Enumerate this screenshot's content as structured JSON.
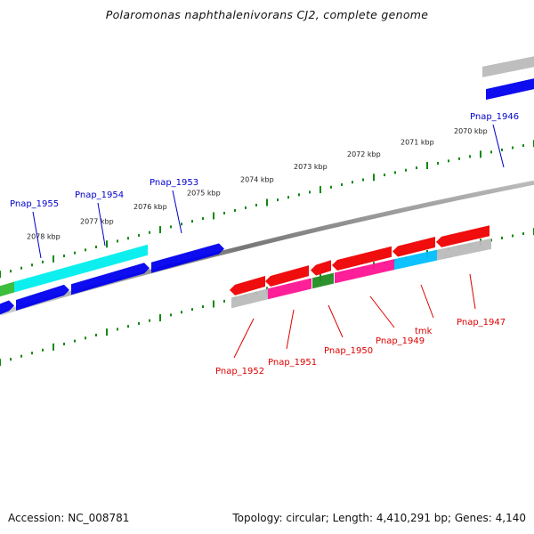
{
  "title": "Polaromonas naphthalenivorans CJ2, complete genome",
  "footer": {
    "accession": "Accession: NC_008781",
    "summary": "Topology: circular; Length: 4,410,291 bp; Genes: 4,140"
  },
  "colors": {
    "forward_label": "#0000cc",
    "reverse_label": "#dd0000",
    "tick": "#118811",
    "backbone": "#888888"
  },
  "scale": {
    "unit": "kbp",
    "ticks": [
      {
        "label": "2078 kbp",
        "value": 2078
      },
      {
        "label": "2077 kbp",
        "value": 2077
      },
      {
        "label": "2076 kbp",
        "value": 2076
      },
      {
        "label": "2075 kbp",
        "value": 2075
      },
      {
        "label": "2074 kbp",
        "value": 2074
      },
      {
        "label": "2073 kbp",
        "value": 2073
      },
      {
        "label": "2072 kbp",
        "value": 2072
      },
      {
        "label": "2071 kbp",
        "value": 2071
      },
      {
        "label": "2070 kbp",
        "value": 2070
      }
    ]
  },
  "forward_genes": [
    {
      "label": "Pnap_1955",
      "cog_color": "#00eeee"
    },
    {
      "label": "Pnap_1954",
      "cog_color": "#00eeee"
    },
    {
      "label": "Pnap_1953",
      "cog_color": "#0000ee"
    },
    {
      "label": "Pnap_1946",
      "cog_color": "#bbbbbb"
    }
  ],
  "reverse_genes": [
    {
      "label": "Pnap_1952",
      "cog_color": "#bbbbbb"
    },
    {
      "label": "Pnap_1951",
      "cog_color": "#ff1493"
    },
    {
      "label": "Pnap_1950",
      "cog_color": "#228b22"
    },
    {
      "label": "Pnap_1949",
      "cog_color": "#ff1493"
    },
    {
      "label": "tmk",
      "cog_color": "#00bfff"
    },
    {
      "label": "Pnap_1947",
      "cog_color": "#bbbbbb"
    }
  ]
}
